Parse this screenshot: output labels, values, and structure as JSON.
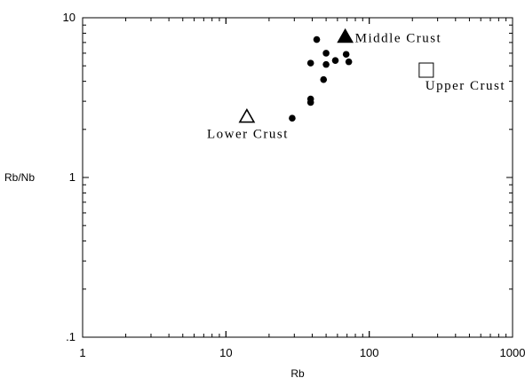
{
  "chart_data": {
    "type": "scatter",
    "title": "",
    "xlabel": "Rb",
    "ylabel": "Rb/Nb",
    "xscale": "log",
    "yscale": "log",
    "xlim": [
      1,
      1000
    ],
    "ylim": [
      0.1,
      10
    ],
    "x_tick_labels": [
      "1",
      "10",
      "100",
      "1000"
    ],
    "y_tick_labels": [
      ".1",
      "1",
      "10"
    ],
    "grid": false,
    "series": [
      {
        "marker": "filled-circle",
        "points": [
          {
            "x": 29,
            "y": 2.35
          },
          {
            "x": 39,
            "y": 2.95
          },
          {
            "x": 39,
            "y": 3.1
          },
          {
            "x": 48,
            "y": 4.1
          },
          {
            "x": 39,
            "y": 5.2
          },
          {
            "x": 43,
            "y": 7.3
          },
          {
            "x": 50,
            "y": 6.0
          },
          {
            "x": 50,
            "y": 5.1
          },
          {
            "x": 58,
            "y": 5.4
          },
          {
            "x": 69,
            "y": 5.9
          },
          {
            "x": 72,
            "y": 5.3
          }
        ]
      }
    ],
    "reference_points": [
      {
        "label": "Lower Crust",
        "marker": "open-triangle",
        "x": 14,
        "y": 2.4
      },
      {
        "label": "Middle Crust",
        "marker": "filled-triangle",
        "x": 68,
        "y": 7.6
      },
      {
        "label": "Upper Crust",
        "marker": "open-square",
        "x": 250,
        "y": 4.7
      }
    ]
  }
}
